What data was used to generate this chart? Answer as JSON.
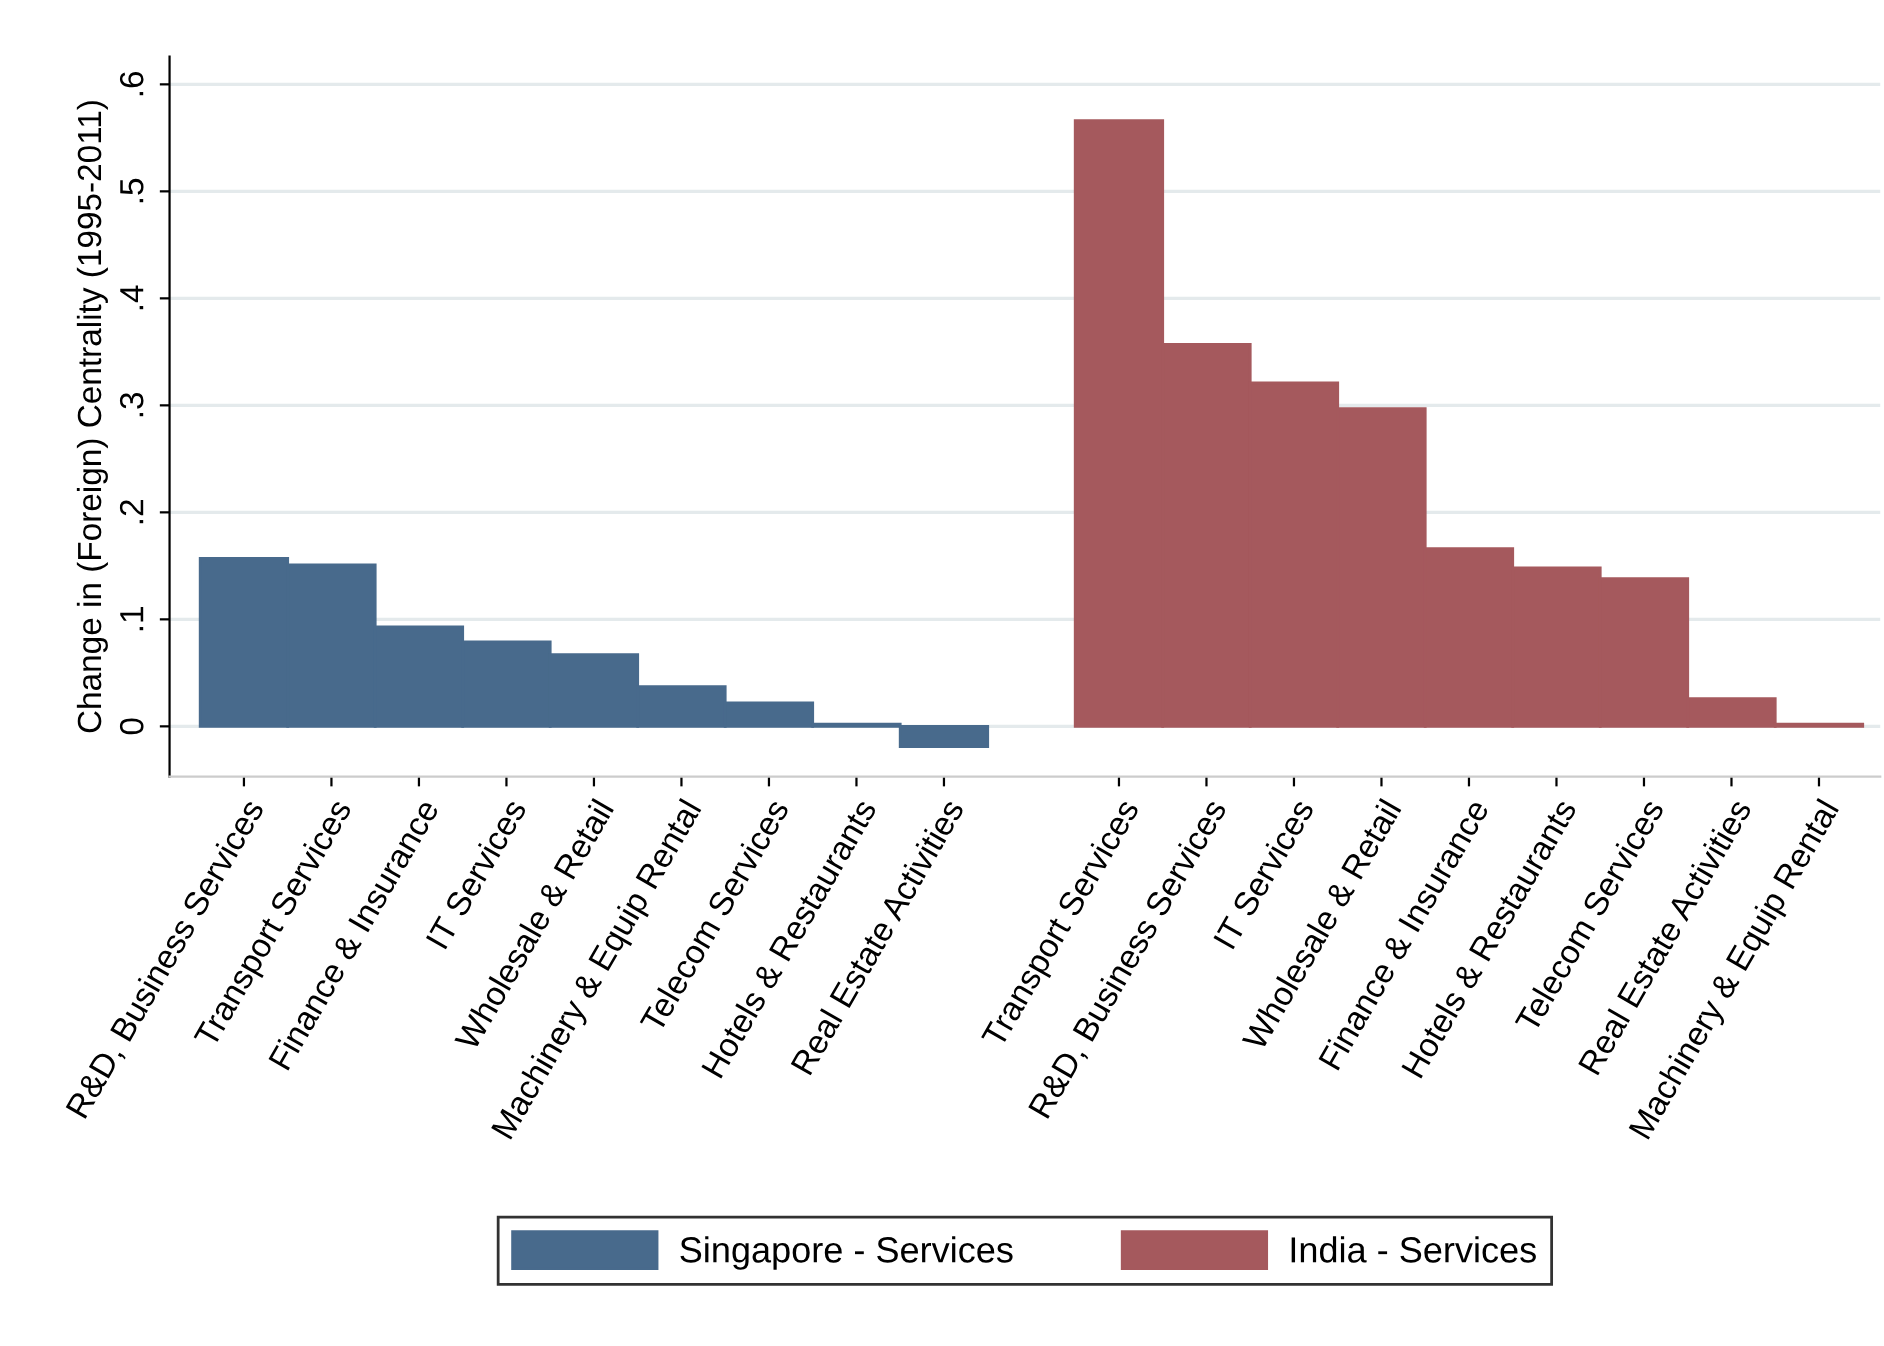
{
  "chart_data": {
    "type": "bar",
    "ylabel": "Change in (Foreign) Centrality (1995-2011)",
    "categories": [
      "R&D, Business Services",
      "Transport Services",
      "Finance & Insurance",
      "IT Services",
      "Wholesale & Retail",
      "Machinery & Equip Rental",
      "Telecom Services",
      "Hotels & Restaurants",
      "Real Estate Activities",
      null,
      "Transport Services",
      "R&D, Business Services",
      "IT Services",
      "Wholesale & Retail",
      "Finance & Insurance",
      "Hotels & Restaurants",
      "Telecom Services",
      "Real Estate Activities",
      "Machinery & Equip Rental"
    ],
    "series": [
      {
        "name": "Singapore - Services",
        "color": "#486a8c",
        "values": [
          0.157,
          0.151,
          0.093,
          0.079,
          0.067,
          0.037,
          0.022,
          0.002,
          -0.019,
          null,
          null,
          null,
          null,
          null,
          null,
          null,
          null,
          null,
          null
        ]
      },
      {
        "name": "India - Services",
        "color": "#a5595d",
        "values": [
          null,
          null,
          null,
          null,
          null,
          null,
          null,
          null,
          null,
          null,
          0.566,
          0.357,
          0.321,
          0.297,
          0.166,
          0.148,
          0.138,
          0.026,
          0.002
        ]
      }
    ],
    "ylim": [
      -0.047,
      0.626
    ],
    "yticks": [
      {
        "value": 0,
        "label": "0"
      },
      {
        "value": 0.1,
        "label": ".1"
      },
      {
        "value": 0.2,
        "label": ".2"
      },
      {
        "value": 0.3,
        "label": ".3"
      },
      {
        "value": 0.4,
        "label": ".4"
      },
      {
        "value": 0.5,
        "label": ".5"
      },
      {
        "value": 0.6,
        "label": ".6"
      }
    ],
    "grid": "y",
    "legend": "bottom"
  }
}
